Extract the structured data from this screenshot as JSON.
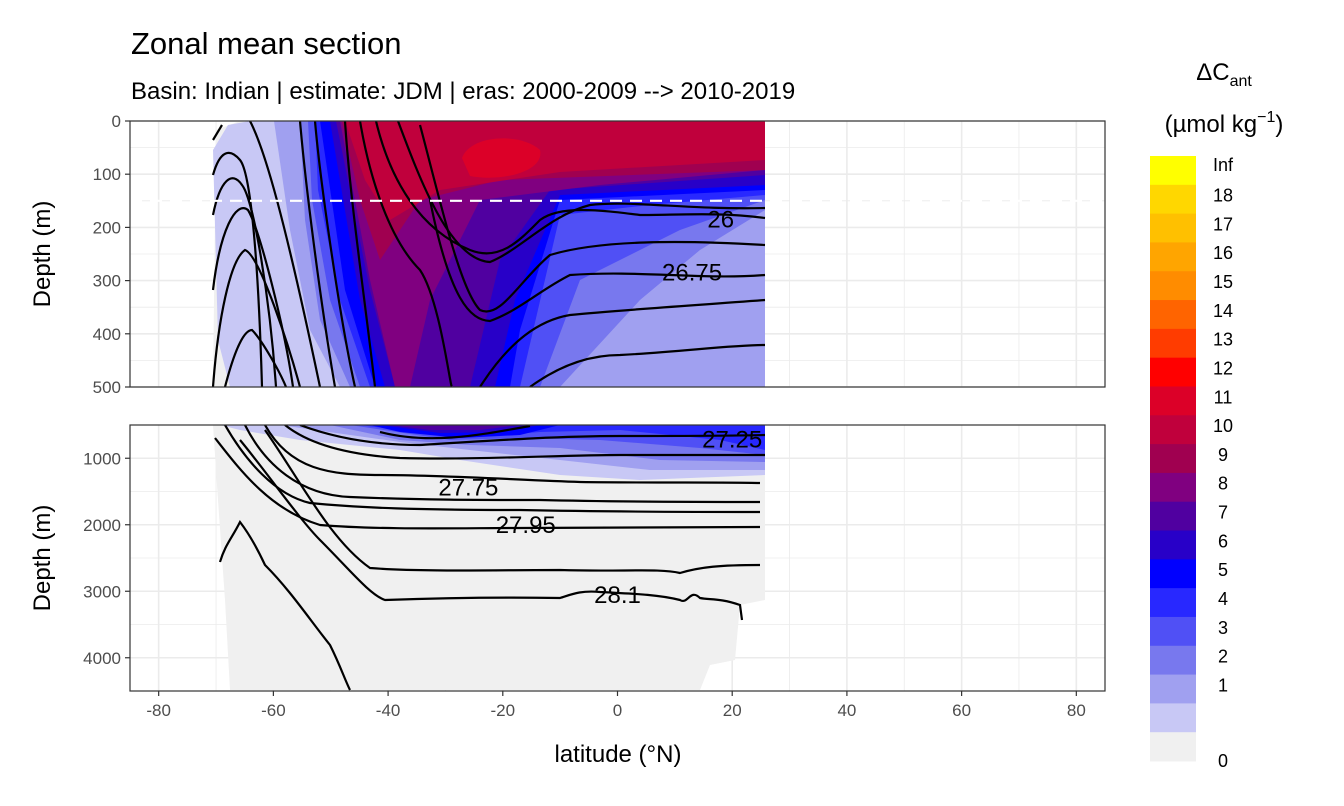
{
  "chart_data": {
    "type": "heatmap",
    "title": "Zonal mean section",
    "subtitle": "Basin: Indian | estimate: JDM  | eras: 2000-2009 --> 2010-2019",
    "xlabel": "latitude (°N)",
    "ylabel": "Depth (m)",
    "xlim": [
      -85,
      85
    ],
    "x_ticks": [
      "-80",
      "-60",
      "-40",
      "-20",
      "0",
      "20",
      "40",
      "60",
      "80"
    ],
    "x_tick_values": [
      -80,
      -60,
      -40,
      -20,
      0,
      20,
      40,
      60,
      80
    ],
    "data_lat_range": [
      -70,
      25
    ],
    "grid": true,
    "dashed_reference_depth": 150,
    "panels": [
      {
        "name": "upper",
        "ylim": [
          0,
          500
        ],
        "y_ticks": [
          "0",
          "100",
          "200",
          "300",
          "400",
          "500"
        ],
        "y_tick_values": [
          0,
          100,
          200,
          300,
          400,
          500
        ],
        "contour_labels": [
          {
            "text": "26",
            "lat": 18,
            "depth": 185
          },
          {
            "text": "26.75",
            "lat": 13,
            "depth": 285
          }
        ]
      },
      {
        "name": "lower",
        "ylim": [
          500,
          4500
        ],
        "y_ticks": [
          "1000",
          "2000",
          "3000",
          "4000"
        ],
        "y_tick_values": [
          1000,
          2000,
          3000,
          4000
        ],
        "contour_labels": [
          {
            "text": "27.25",
            "lat": 20,
            "depth": 720
          },
          {
            "text": "27.75",
            "lat": -26,
            "depth": 1440
          },
          {
            "text": "27.95",
            "lat": -16,
            "depth": 2000
          },
          {
            "text": "28.1",
            "lat": 0,
            "depth": 3060
          }
        ]
      }
    ],
    "legend": {
      "title": "ΔC",
      "title_subscript": "ant",
      "unit": "(µmol kg",
      "unit_superscript": "−1",
      "unit_close": ")",
      "placement": "right",
      "labels": [
        "Inf",
        "18",
        "17",
        "16",
        "15",
        "14",
        "13",
        "12",
        "11",
        "10",
        "9",
        "8",
        "7",
        "6",
        "5",
        "4",
        "3",
        "2",
        "1",
        "0"
      ],
      "colors": [
        "#FFFF00",
        "#FFD700",
        "#FFC000",
        "#FFA500",
        "#FF8C00",
        "#FF6400",
        "#FF3C00",
        "#FF0000",
        "#DC0028",
        "#C0003C",
        "#A00050",
        "#800080",
        "#5000A0",
        "#2800C8",
        "#0000FF",
        "#2828FF",
        "#5050F5",
        "#7878EE",
        "#A0A0F0",
        "#C8C8F5",
        "#F0F0F0"
      ]
    }
  }
}
